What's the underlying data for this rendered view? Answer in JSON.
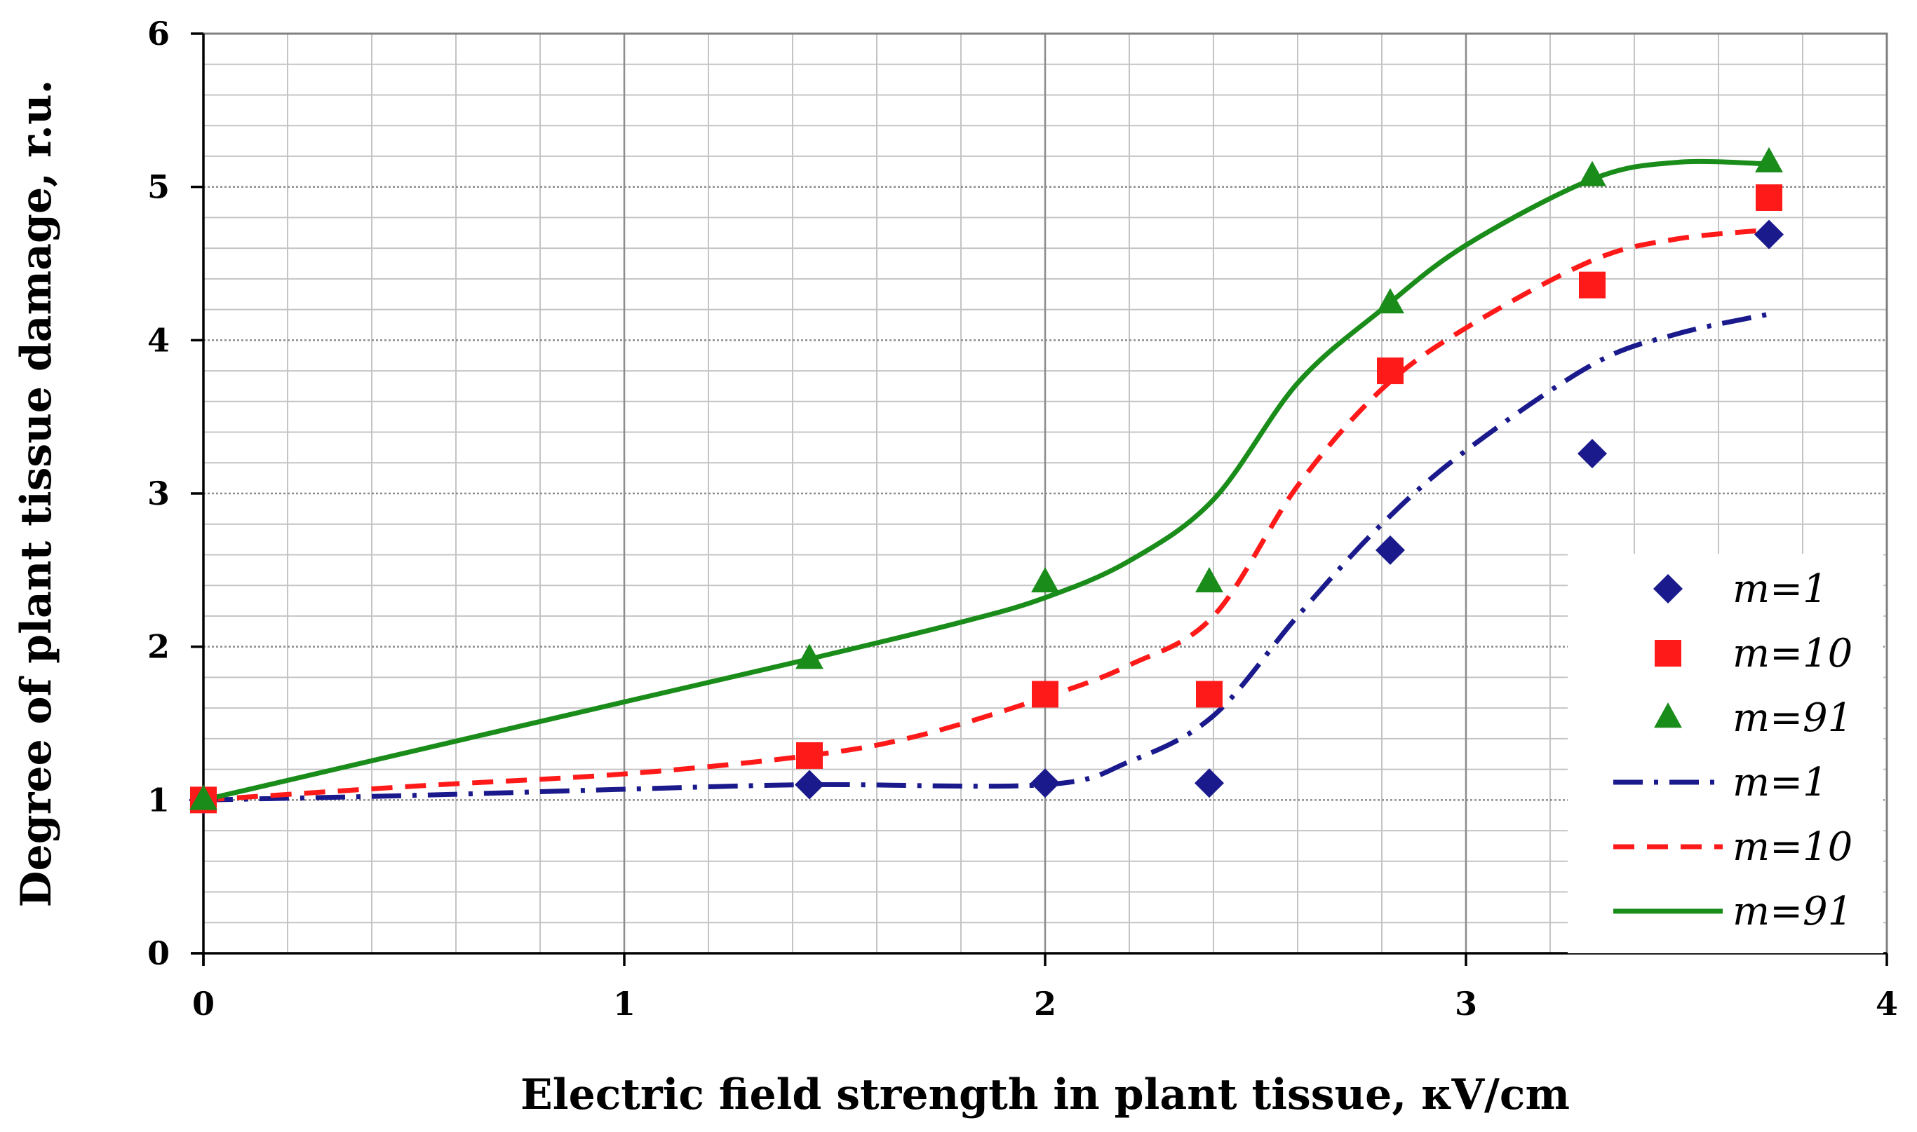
{
  "chart_data": {
    "type": "scatter",
    "xlabel": "Electric field strength in plant tissue, кV/cm",
    "ylabel": "Degree of plant tissue damage, r.u.",
    "xlim": [
      0,
      4
    ],
    "ylim": [
      0,
      6
    ],
    "x_ticks": [
      "0",
      "1",
      "2",
      "3",
      "4"
    ],
    "y_ticks": [
      "0",
      "1",
      "2",
      "3",
      "4",
      "5",
      "6"
    ],
    "grid": true,
    "legend_position": "bottom-right",
    "markers": [
      {
        "name": "m=1",
        "shape": "diamond",
        "color": "#1a1a8c",
        "points": [
          [
            0,
            1.0
          ],
          [
            1.44,
            1.1
          ],
          [
            2.0,
            1.11
          ],
          [
            2.39,
            1.11
          ],
          [
            2.82,
            2.63
          ],
          [
            3.3,
            3.26
          ],
          [
            3.72,
            4.69
          ]
        ]
      },
      {
        "name": "m=10",
        "shape": "square",
        "color": "#ff1a1a",
        "points": [
          [
            0,
            1.0
          ],
          [
            1.44,
            1.29
          ],
          [
            2.0,
            1.69
          ],
          [
            2.39,
            1.69
          ],
          [
            2.82,
            3.8
          ],
          [
            3.3,
            4.36
          ],
          [
            3.72,
            4.93
          ]
        ]
      },
      {
        "name": "m=91",
        "shape": "triangle",
        "color": "#1a8c1a",
        "points": [
          [
            0,
            1.0
          ],
          [
            1.44,
            1.92
          ],
          [
            2.0,
            2.42
          ],
          [
            2.39,
            2.42
          ],
          [
            2.82,
            4.24
          ],
          [
            3.3,
            5.07
          ],
          [
            3.72,
            5.16
          ]
        ]
      }
    ],
    "curves": [
      {
        "name": "m=1",
        "style": "dash-dot",
        "color": "#1a1a8c",
        "points": [
          [
            0,
            1.0
          ],
          [
            0.5,
            1.03
          ],
          [
            1.0,
            1.07
          ],
          [
            1.44,
            1.1
          ],
          [
            2.0,
            1.1
          ],
          [
            2.2,
            1.25
          ],
          [
            2.4,
            1.55
          ],
          [
            2.6,
            2.2
          ],
          [
            2.8,
            2.8
          ],
          [
            3.0,
            3.28
          ],
          [
            3.3,
            3.84
          ],
          [
            3.5,
            4.04
          ],
          [
            3.72,
            4.17
          ]
        ]
      },
      {
        "name": "m=10",
        "style": "dashed",
        "color": "#ff1a1a",
        "points": [
          [
            0,
            1.0
          ],
          [
            0.5,
            1.09
          ],
          [
            1.0,
            1.17
          ],
          [
            1.44,
            1.29
          ],
          [
            1.7,
            1.42
          ],
          [
            2.0,
            1.67
          ],
          [
            2.2,
            1.88
          ],
          [
            2.4,
            2.2
          ],
          [
            2.6,
            3.05
          ],
          [
            2.8,
            3.68
          ],
          [
            3.0,
            4.08
          ],
          [
            3.3,
            4.52
          ],
          [
            3.5,
            4.66
          ],
          [
            3.72,
            4.72
          ]
        ]
      },
      {
        "name": "m=91",
        "style": "solid",
        "color": "#1a8c1a",
        "points": [
          [
            0,
            1.0
          ],
          [
            0.5,
            1.32
          ],
          [
            1.0,
            1.64
          ],
          [
            1.44,
            1.92
          ],
          [
            1.8,
            2.16
          ],
          [
            2.0,
            2.32
          ],
          [
            2.2,
            2.56
          ],
          [
            2.4,
            2.96
          ],
          [
            2.6,
            3.72
          ],
          [
            2.8,
            4.2
          ],
          [
            3.0,
            4.62
          ],
          [
            3.3,
            5.05
          ],
          [
            3.5,
            5.16
          ],
          [
            3.72,
            5.15
          ]
        ]
      }
    ]
  }
}
